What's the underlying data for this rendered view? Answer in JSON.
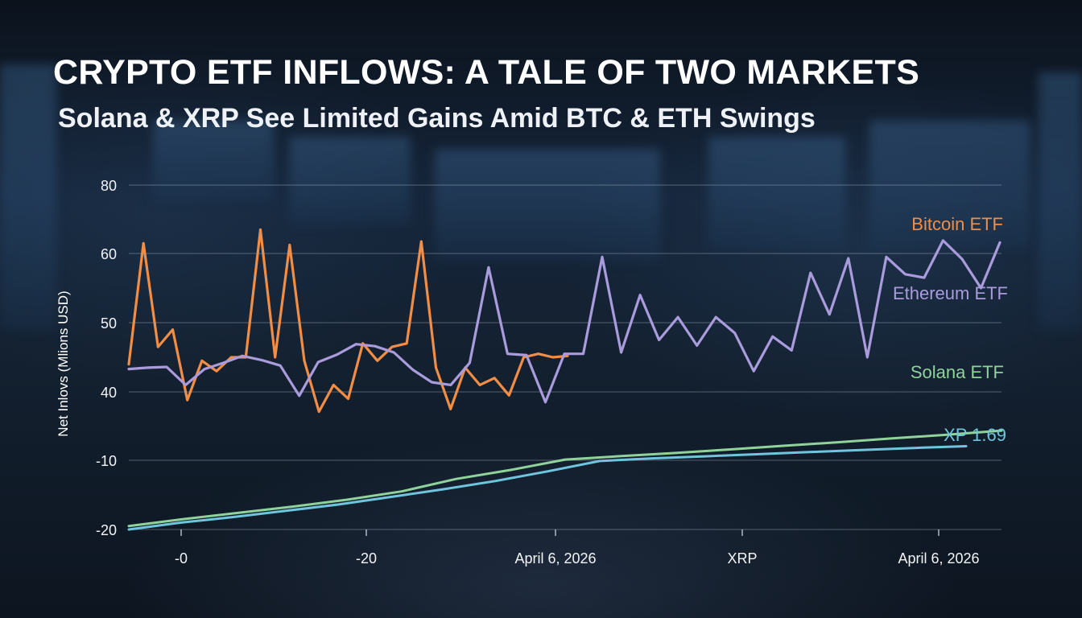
{
  "title": "CRYPTO ETF INFLOWS: A TALE OF TWO MARKETS",
  "subtitle": "Solana & XRP See Limited Gains Amid BTC & ETH Swings",
  "chart_data": {
    "type": "line",
    "ylabel": "Net Inlovs (Mlions USD)",
    "y_tick_labels": [
      "80",
      "60",
      "50",
      "40",
      "-10",
      "-20"
    ],
    "x_tick_labels": [
      "-0",
      "-20",
      "April 6, 2026",
      "XRP",
      "April 6, 2026"
    ],
    "grid": true,
    "series": [
      {
        "name": "Bitcoin ETF",
        "color": "#f28d45",
        "values": [
          44,
          63,
          46.5,
          49,
          34,
          44.5,
          43,
          45,
          45,
          67,
          45,
          62.5,
          44.5,
          25.5,
          41,
          35,
          47,
          44.5,
          46.5,
          47,
          63.5,
          43.5,
          27.5,
          43.5,
          41,
          42,
          37.5,
          45,
          45.5,
          45,
          45.2
        ]
      },
      {
        "name": "Ethereum ETF",
        "color": "#a99bdc",
        "values": [
          43.3,
          43.5,
          43.6,
          41,
          43.3,
          44.2,
          45.2,
          44.6,
          43.8,
          37.2,
          44.3,
          45.4,
          46.9,
          46.6,
          45.7,
          43.2,
          41.4,
          41,
          44.2,
          58,
          45.5,
          45.3,
          32.5,
          45.5,
          45.5,
          59.5,
          45.7,
          54,
          47.5,
          50.8,
          46.7,
          50.8,
          48.5,
          43,
          48,
          46,
          57.2,
          51.2,
          59.3,
          45,
          59.5,
          57,
          56.5,
          63.8,
          59.2,
          55,
          63.2
        ]
      },
      {
        "name": "Solana ETF",
        "color": "#8fd39a",
        "values": [
          -19.5,
          -18.5,
          -17.6,
          -16.7,
          -15.7,
          -14.5,
          -12.7,
          -11.4,
          -9.5,
          -7,
          -4.7,
          -2.1,
          0.6,
          3.2,
          6,
          8.7,
          11.7
        ]
      },
      {
        "name": "XP 1.69",
        "color": "#6fc5dd",
        "values": [
          -20,
          -19,
          -18.2,
          -17.3,
          -16.4,
          -15.3,
          -14.2,
          -13,
          -11.6,
          -10.1,
          -8.6,
          -7.1,
          -5.6,
          -4,
          -2.5,
          -1,
          0.3
        ]
      }
    ]
  }
}
